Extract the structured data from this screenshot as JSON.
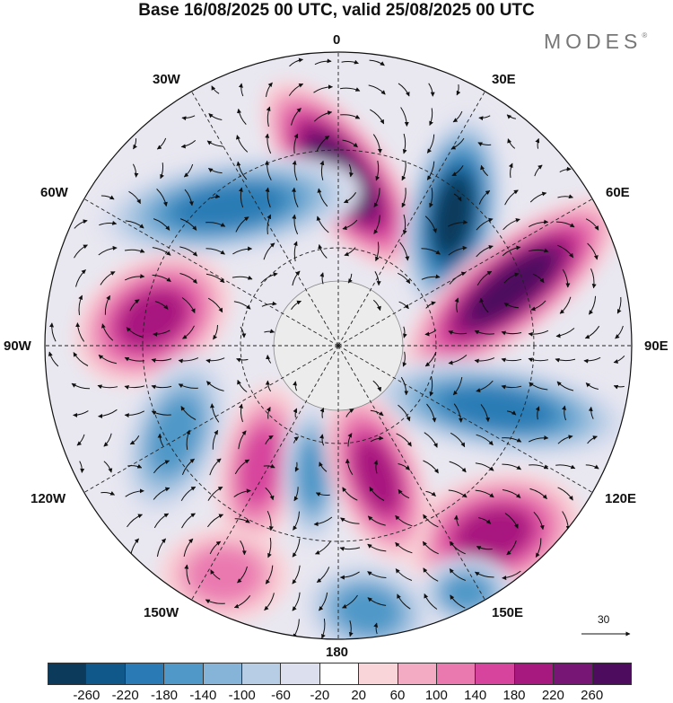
{
  "title": "Base 16/08/2025 00 UTC, valid 25/08/2025 00 UTC",
  "brand": "MODES",
  "brand_mark": "®",
  "longitude_labels": {
    "lon_0": "0",
    "lon_30e": "30E",
    "lon_60e": "60E",
    "lon_90e": "90E",
    "lon_120e": "120E",
    "lon_150e": "150E",
    "lon_180": "180",
    "lon_150w": "150W",
    "lon_120w": "120W",
    "lon_90w": "90W",
    "lon_60w": "60W",
    "lon_30w": "30W"
  },
  "reference_vector": {
    "label": "30"
  },
  "colorbar": {
    "ticks": [
      "-260",
      "-220",
      "-180",
      "-140",
      "-100",
      "-60",
      "-20",
      "20",
      "60",
      "100",
      "140",
      "180",
      "220",
      "260"
    ],
    "colors": [
      "#0b3a5b",
      "#10588a",
      "#2a7bb5",
      "#4f98c8",
      "#86b4d8",
      "#b7cde5",
      "#dcdfee",
      "#ffffff",
      "#f9d5da",
      "#f3aac3",
      "#ea79b0",
      "#d7449d",
      "#a8197f",
      "#781675",
      "#4d0c5e"
    ]
  },
  "anomaly_centers": [
    {
      "name": "pos-30e",
      "value": 260
    },
    {
      "name": "neg-45e",
      "value": -260
    },
    {
      "name": "pos-75e",
      "value": 260
    },
    {
      "name": "neg-40w",
      "value": -180
    },
    {
      "name": "pos-80w",
      "value": 180
    },
    {
      "name": "neg-105e",
      "value": -180
    },
    {
      "name": "pos-130e",
      "value": 180
    },
    {
      "name": "neg-115w",
      "value": -140
    },
    {
      "name": "pos-150w",
      "value": 140
    },
    {
      "name": "neg-175e",
      "value": -140
    },
    {
      "name": "pos-160e",
      "value": 180
    },
    {
      "name": "neg-160w",
      "value": -140
    },
    {
      "name": "pos-140w",
      "value": 100
    },
    {
      "name": "neg-165e",
      "value": -140
    }
  ]
}
